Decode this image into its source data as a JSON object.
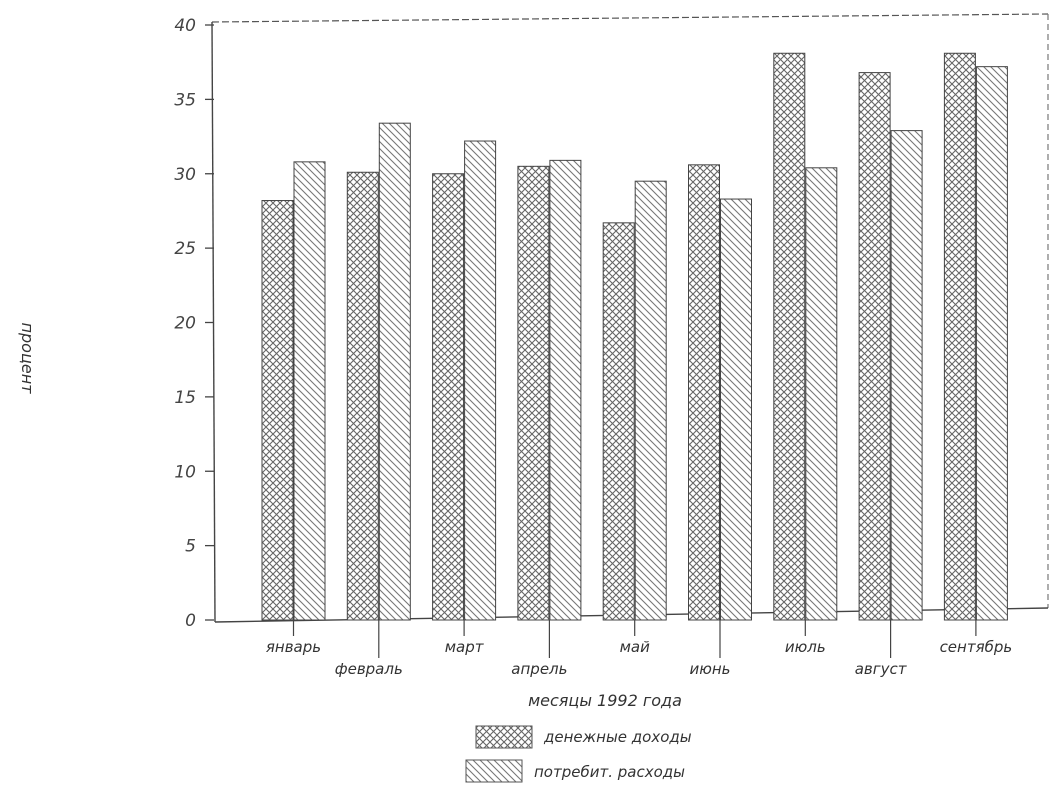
{
  "chart_data": {
    "type": "bar",
    "categories": [
      "январь",
      "февраль",
      "март",
      "апрель",
      "май",
      "июнь",
      "июль",
      "август",
      "сентябрь"
    ],
    "category_labels_printed": [
      "январь",
      "февраль",
      "март",
      "апрель",
      "май",
      "июнь",
      "июль",
      "август",
      "сентябрь"
    ],
    "series": [
      {
        "name": "денежные доходы",
        "values": [
          28.2,
          30.1,
          30.0,
          30.5,
          26.7,
          30.6,
          38.1,
          36.8,
          38.1
        ]
      },
      {
        "name": "потребит. расходы",
        "values": [
          30.8,
          33.4,
          32.2,
          30.9,
          29.5,
          28.3,
          30.4,
          32.9,
          37.2
        ]
      }
    ],
    "xlabel": "месяцы 1992 года",
    "ylabel": "процент",
    "ylim": [
      0,
      40
    ],
    "yticks": [
      "0",
      "5",
      "10",
      "15",
      "20",
      "25",
      "30",
      "35",
      "40"
    ],
    "grid": false,
    "legend_position": "bottom",
    "colors": {
      "series1": "#555555",
      "series2": "#666666"
    }
  }
}
